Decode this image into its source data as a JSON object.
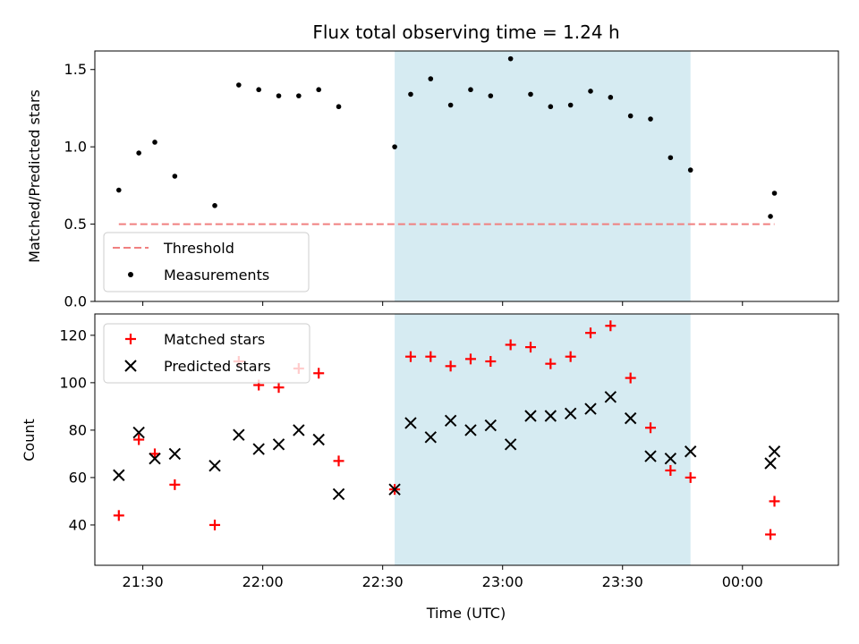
{
  "title": "Flux total observing time = 1.24 h",
  "colors": {
    "shade": "#add8e6",
    "threshold": "#f08080",
    "measurements": "#000000",
    "matched": "#ff0000",
    "predicted": "#000000"
  },
  "chart_data": [
    {
      "type": "scatter",
      "panel": "top",
      "ylabel": "Matched/Predicted stars",
      "xlim": [
        "21:18",
        "00:24"
      ],
      "ylim": [
        0,
        1.62
      ],
      "yticks": [
        0.0,
        0.5,
        1.0,
        1.5
      ],
      "ytick_labels": [
        "0.0",
        "0.5",
        "1.0",
        "1.5"
      ],
      "shaded_span": [
        "22:33",
        "23:47"
      ],
      "threshold": {
        "name": "Threshold",
        "value": 0.5,
        "x": [
          "21:24",
          "00:08"
        ]
      },
      "legend": {
        "position": "lower-left",
        "entries": [
          "Threshold",
          "Measurements"
        ]
      },
      "series": [
        {
          "name": "Measurements",
          "x": [
            "21:24",
            "21:29",
            "21:33",
            "21:38",
            "21:48",
            "21:54",
            "21:59",
            "22:04",
            "22:09",
            "22:14",
            "22:19",
            "22:33",
            "22:37",
            "22:42",
            "22:47",
            "22:52",
            "22:57",
            "23:02",
            "23:07",
            "23:12",
            "23:17",
            "23:22",
            "23:27",
            "23:32",
            "23:37",
            "23:42",
            "23:47",
            "00:07",
            "00:08"
          ],
          "y": [
            0.72,
            0.96,
            1.03,
            0.81,
            0.62,
            1.4,
            1.37,
            1.33,
            1.33,
            1.37,
            1.26,
            1.0,
            1.34,
            1.44,
            1.27,
            1.37,
            1.33,
            1.57,
            1.34,
            1.26,
            1.27,
            1.36,
            1.32,
            1.2,
            1.18,
            0.93,
            0.85,
            0.55,
            0.7
          ]
        }
      ]
    },
    {
      "type": "scatter",
      "panel": "bottom",
      "xlabel": "Time (UTC)",
      "ylabel": "Count",
      "xlim": [
        "21:18",
        "00:24"
      ],
      "ylim": [
        23,
        129
      ],
      "xticks": [
        "21:30",
        "22:00",
        "22:30",
        "23:00",
        "23:30",
        "00:00"
      ],
      "yticks": [
        40,
        60,
        80,
        100,
        120
      ],
      "shaded_span": [
        "22:33",
        "23:47"
      ],
      "legend": {
        "position": "upper-left",
        "entries": [
          "Matched stars",
          "Predicted stars"
        ]
      },
      "series": [
        {
          "name": "Matched stars",
          "marker": "plus",
          "x": [
            "21:24",
            "21:29",
            "21:33",
            "21:38",
            "21:48",
            "21:54",
            "21:59",
            "22:04",
            "22:09",
            "22:14",
            "22:19",
            "22:33",
            "22:37",
            "22:42",
            "22:47",
            "22:52",
            "22:57",
            "23:02",
            "23:07",
            "23:12",
            "23:17",
            "23:22",
            "23:27",
            "23:32",
            "23:37",
            "23:42",
            "23:47",
            "00:07",
            "00:08"
          ],
          "y": [
            44,
            76,
            70,
            57,
            40,
            109,
            99,
            98,
            106,
            104,
            67,
            55,
            111,
            111,
            107,
            110,
            109,
            116,
            115,
            108,
            111,
            121,
            124,
            102,
            81,
            63,
            60,
            36,
            50
          ]
        },
        {
          "name": "Predicted stars",
          "marker": "x",
          "x": [
            "21:24",
            "21:29",
            "21:33",
            "21:38",
            "21:48",
            "21:54",
            "21:59",
            "22:04",
            "22:09",
            "22:14",
            "22:19",
            "22:33",
            "22:37",
            "22:42",
            "22:47",
            "22:52",
            "22:57",
            "23:02",
            "23:07",
            "23:12",
            "23:17",
            "23:22",
            "23:27",
            "23:32",
            "23:37",
            "23:42",
            "23:47",
            "00:07",
            "00:08"
          ],
          "y": [
            61,
            79,
            68,
            70,
            65,
            78,
            72,
            74,
            80,
            76,
            53,
            55,
            83,
            77,
            84,
            80,
            82,
            74,
            86,
            86,
            87,
            89,
            94,
            85,
            69,
            68,
            71,
            66,
            71
          ]
        }
      ]
    }
  ]
}
